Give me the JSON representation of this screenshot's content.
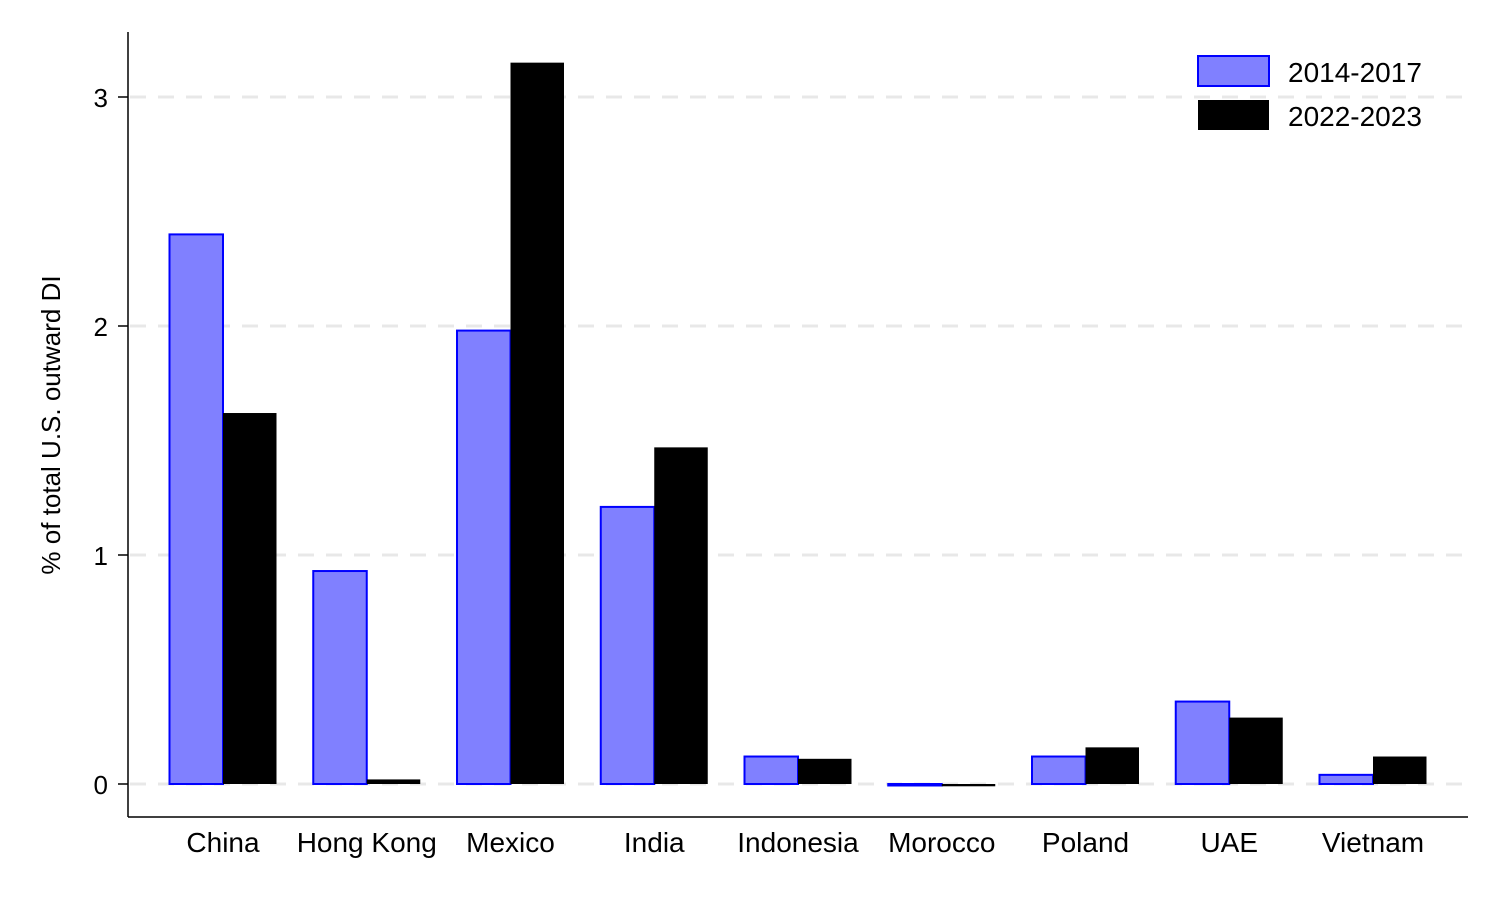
{
  "chart_data": {
    "type": "bar",
    "title": "",
    "xlabel": "",
    "ylabel": "% of total U.S. outward DI",
    "ylim": [
      -0.15,
      3.28
    ],
    "yticks": [
      0,
      1,
      2,
      3
    ],
    "grid": "horizontal dashed",
    "legend_position": "top-right",
    "categories": [
      "China",
      "Hong Kong",
      "Mexico",
      "India",
      "Indonesia",
      "Morocco",
      "Poland",
      "UAE",
      "Vietnam"
    ],
    "series": [
      {
        "name": "2014-2017",
        "color": "#8080ff",
        "edge": "#0000ff",
        "values": [
          2.4,
          0.93,
          1.98,
          1.21,
          0.12,
          -0.005,
          0.12,
          0.36,
          0.04
        ]
      },
      {
        "name": "2022-2023",
        "color": "#000000",
        "edge": "#000000",
        "values": [
          1.62,
          0.02,
          3.15,
          1.47,
          0.11,
          -0.01,
          0.16,
          0.29,
          0.12
        ]
      }
    ]
  }
}
